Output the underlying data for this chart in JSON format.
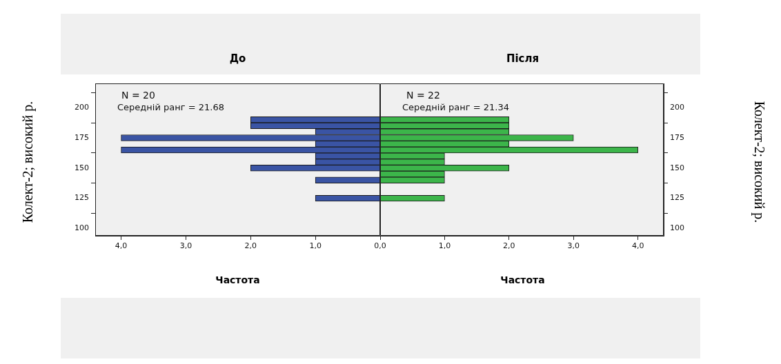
{
  "chart_data": [
    {
      "type": "histogram",
      "orientation": "horizontal",
      "title": "До",
      "xlabel": "Частота",
      "ylabel": "Колект-2; високий р.",
      "bins": [
        122.5,
        127.5,
        132.5,
        137.5,
        142.5,
        147.5,
        152.5,
        157.5,
        162.5,
        167.5,
        172.5,
        177.5,
        182.5,
        187.5,
        192.5
      ],
      "values": [
        1,
        0,
        0,
        1,
        0,
        2,
        1,
        1,
        4,
        1,
        4,
        1,
        2,
        2
      ],
      "color": "#3a54a4",
      "xlim": [
        4.4,
        0
      ],
      "xticks": [
        {
          "value": 4,
          "label": "4,0"
        },
        {
          "value": 3,
          "label": "3,0"
        },
        {
          "value": 2,
          "label": "2,0"
        },
        {
          "value": 1,
          "label": "1,0"
        },
        {
          "value": 0,
          "label": "0,0"
        }
      ],
      "ylim": [
        94,
        220
      ],
      "yticks": [
        100,
        125,
        150,
        175,
        200
      ],
      "annotations": [
        "N = 20",
        "Середній ранг = 21.68"
      ]
    },
    {
      "type": "histogram",
      "orientation": "horizontal",
      "title": "Після",
      "xlabel": "Частота",
      "ylabel": "Колект-2; високий р.",
      "bins": [
        122.5,
        127.5,
        132.5,
        137.5,
        142.5,
        147.5,
        152.5,
        157.5,
        162.5,
        167.5,
        172.5,
        177.5,
        182.5,
        187.5,
        192.5
      ],
      "values": [
        1,
        0,
        0,
        1,
        1,
        2,
        1,
        1,
        4,
        2,
        3,
        2,
        2,
        2
      ],
      "color": "#3cb54a",
      "xlim": [
        0,
        4.4
      ],
      "xticks": [
        {
          "value": 0,
          "label": null
        },
        {
          "value": 1,
          "label": "1,0"
        },
        {
          "value": 2,
          "label": "2,0"
        },
        {
          "value": 3,
          "label": "3,0"
        },
        {
          "value": 4,
          "label": "4,0"
        }
      ],
      "ylim": [
        94,
        220
      ],
      "yticks": [
        100,
        125,
        150,
        175,
        200
      ],
      "annotations": [
        "N = 22",
        "Середній ранг = 21.34"
      ]
    }
  ]
}
